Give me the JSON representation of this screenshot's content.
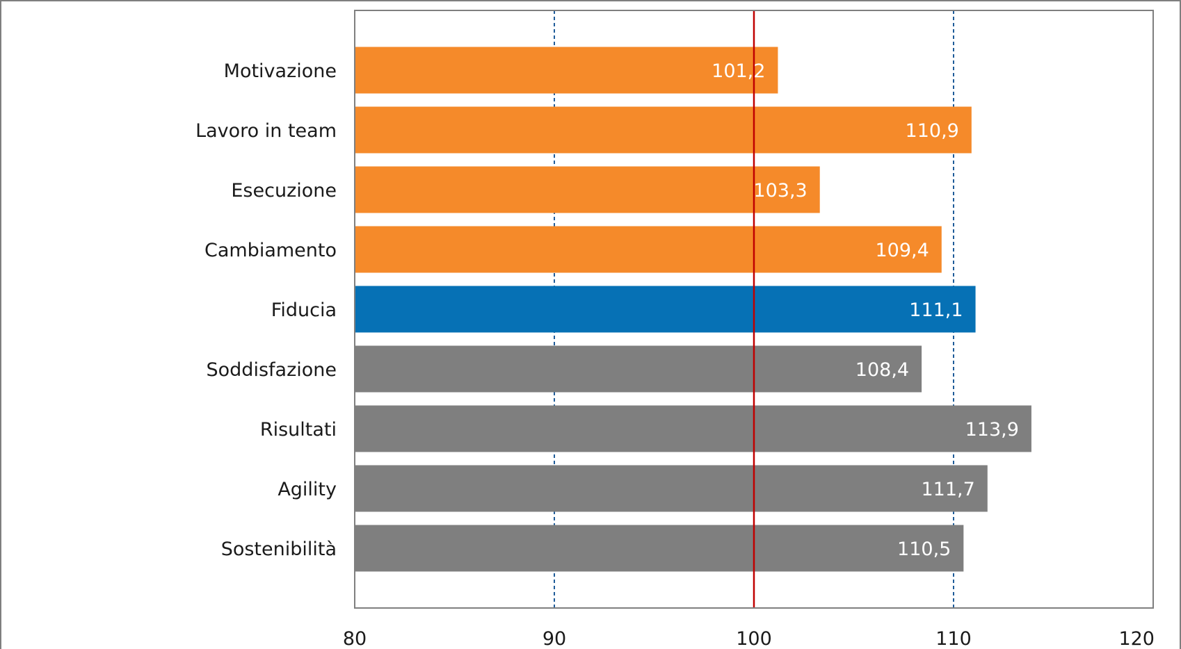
{
  "colors": {
    "orange": "#F58A2A",
    "blue": "#0671B5",
    "gray": "#7F7F7F",
    "reference_line": "#C00000",
    "grid_dashed": "#1F5C99",
    "frame": "#7F7F7F",
    "value_label": "#FFFFFF"
  },
  "chart_data": {
    "type": "bar",
    "orientation": "horizontal",
    "title": "",
    "xlabel": "",
    "ylabel": "",
    "xlim": [
      80,
      120
    ],
    "x_ticks": [
      80,
      90,
      100,
      110,
      120
    ],
    "x_tick_labels": [
      "80",
      "90",
      "100",
      "110",
      "120"
    ],
    "reference_line": 100,
    "dashed_gridlines": [
      90,
      110
    ],
    "categories": [
      "Motivazione",
      "Lavoro in team",
      "Esecuzione",
      "Cambiamento",
      "Fiducia",
      "Soddisfazione",
      "Risultati",
      "Agility",
      "Sostenibilità"
    ],
    "values": [
      101.2,
      110.9,
      103.3,
      109.4,
      111.1,
      108.4,
      113.9,
      111.7,
      110.5
    ],
    "value_labels": [
      "101,2",
      "110,9",
      "103,3",
      "109,4",
      "111,1",
      "108,4",
      "113,9",
      "111,7",
      "110,5"
    ],
    "bar_colors": [
      "orange",
      "orange",
      "orange",
      "orange",
      "blue",
      "gray",
      "gray",
      "gray",
      "gray"
    ],
    "legend": "none"
  }
}
